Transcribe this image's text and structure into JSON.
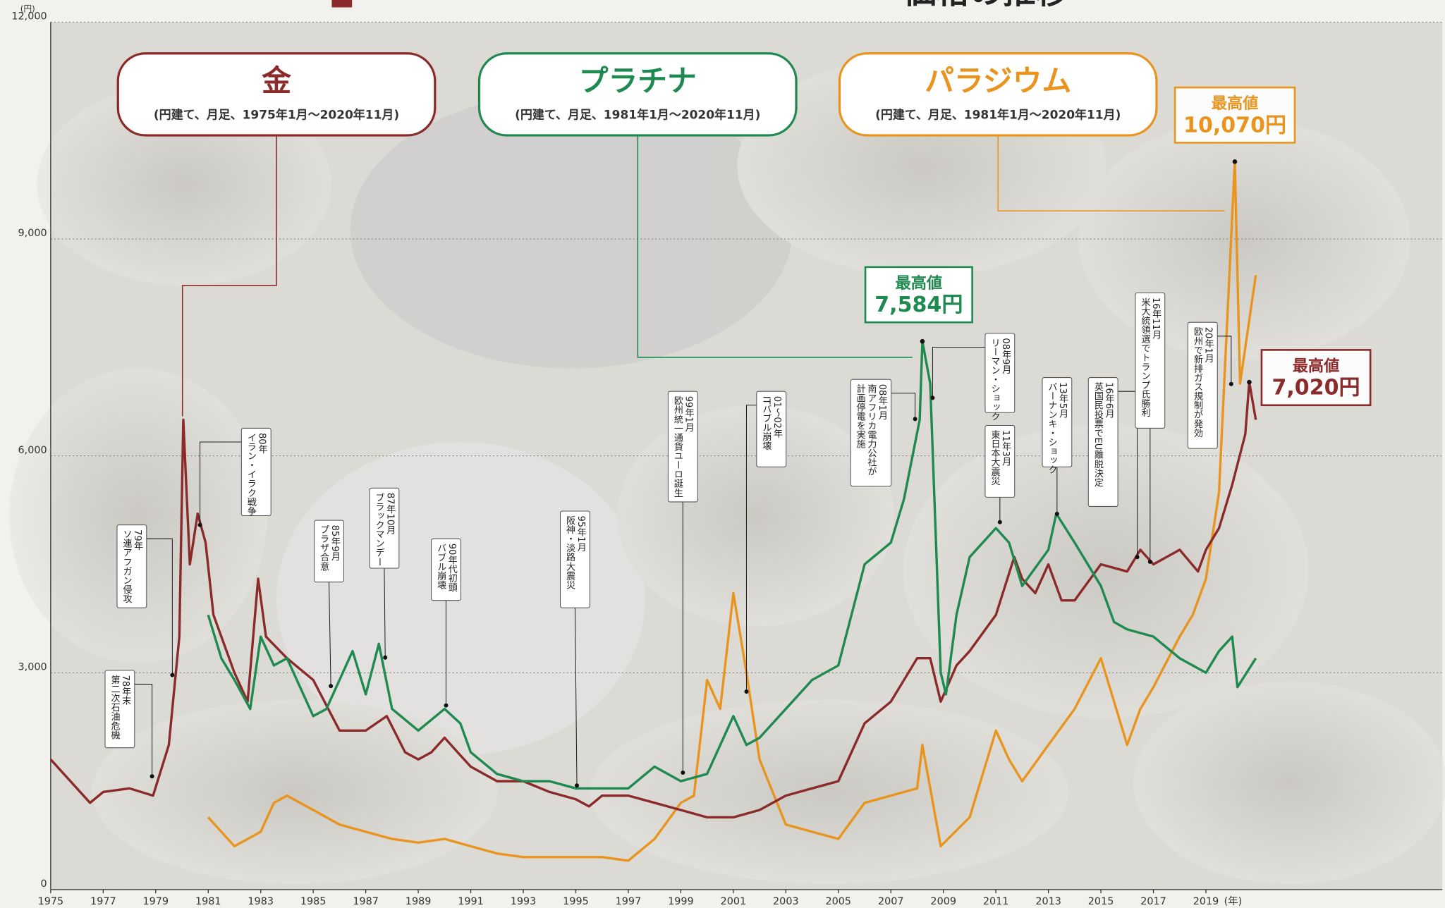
{
  "chart_data": {
    "type": "line",
    "title": "価格の推移",
    "y_unit": "(円)",
    "x_unit": "(年)",
    "xlim": [
      1975,
      2028
    ],
    "ylim": [
      0,
      12000
    ],
    "xticks": [
      1975,
      1977,
      1979,
      1981,
      1983,
      1985,
      1987,
      1989,
      1991,
      1993,
      1995,
      1997,
      1999,
      2001,
      2003,
      2005,
      2007,
      2009,
      2011,
      2013,
      2015,
      2017,
      2019
    ],
    "yticks": [
      0,
      {
        "value": 3000,
        "label": "3,000"
      },
      {
        "value": 6000,
        "label": "6,000"
      },
      {
        "value": 9000,
        "label": "9,000"
      },
      {
        "value": 12000,
        "label": "12,000"
      }
    ],
    "grid": true,
    "series": [
      {
        "name": "金",
        "subtitle": "(円建て、月足、1975年1月～2020年11月)",
        "color": "#8b2a2a",
        "x": [
          1975,
          1976.5,
          1977,
          1978,
          1978.9,
          1979.5,
          1979.9,
          1980.05,
          1980.3,
          1980.6,
          1980.9,
          1981.2,
          1982,
          1982.5,
          1982.9,
          1983.2,
          1984,
          1985,
          1986,
          1987,
          1987.8,
          1988.5,
          1989,
          1989.5,
          1990,
          1990.5,
          1991,
          1992,
          1993,
          1994,
          1995,
          1995.5,
          1996,
          1997,
          1998,
          1999,
          2000,
          2001,
          2002,
          2003,
          2004,
          2005,
          2006,
          2007,
          2008,
          2008.5,
          2008.9,
          2009.5,
          2010,
          2011,
          2011.7,
          2012,
          2012.5,
          2013,
          2013.5,
          2014,
          2015,
          2016,
          2016.5,
          2017,
          2018,
          2018.7,
          2019,
          2019.5,
          2020,
          2020.5,
          2020.65,
          2020.9
        ],
        "values": [
          1800,
          1200,
          1350,
          1400,
          1300,
          2000,
          3500,
          6500,
          4500,
          5200,
          4800,
          3800,
          3000,
          2600,
          4300,
          3500,
          3200,
          2900,
          2200,
          2200,
          2400,
          1900,
          1800,
          1900,
          2100,
          1900,
          1700,
          1500,
          1500,
          1350,
          1250,
          1150,
          1300,
          1300,
          1200,
          1100,
          1000,
          1000,
          1100,
          1300,
          1400,
          1500,
          2300,
          2600,
          3200,
          3200,
          2600,
          3100,
          3300,
          3800,
          4600,
          4300,
          4100,
          4500,
          4000,
          4000,
          4500,
          4400,
          4700,
          4500,
          4700,
          4400,
          4700,
          5000,
          5600,
          6300,
          7020,
          6500
        ],
        "peak": {
          "label": "最高値",
          "x": 2020.65,
          "value": 7020,
          "value_label": "7,020円"
        }
      },
      {
        "name": "プラチナ",
        "subtitle": "(円建て、月足、1981年1月～2020年11月)",
        "color": "#1f8a4f",
        "x": [
          1981,
          1981.5,
          1982,
          1982.6,
          1983,
          1983.5,
          1984,
          1985,
          1985.5,
          1986,
          1986.5,
          1987,
          1987.5,
          1988,
          1989,
          1990,
          1990.6,
          1991,
          1992,
          1993,
          1994,
          1995,
          1996,
          1997,
          1998,
          1999,
          2000,
          2001,
          2001.5,
          2002,
          2003,
          2004,
          2005,
          2006,
          2007,
          2007.5,
          2008.1,
          2008.2,
          2008.5,
          2008.9,
          2009.1,
          2009.5,
          2010,
          2011,
          2011.5,
          2012,
          2013,
          2013.3,
          2014,
          2015,
          2015.5,
          2016,
          2017,
          2018,
          2019,
          2019.5,
          2020,
          2020.2,
          2020.9
        ],
        "values": [
          3800,
          3200,
          2900,
          2500,
          3500,
          3100,
          3200,
          2400,
          2500,
          2900,
          3300,
          2700,
          3400,
          2500,
          2200,
          2500,
          2300,
          1900,
          1600,
          1500,
          1500,
          1400,
          1400,
          1400,
          1700,
          1500,
          1600,
          2400,
          2000,
          2100,
          2500,
          2900,
          3100,
          4500,
          4800,
          5400,
          6500,
          7584,
          7000,
          3000,
          2700,
          3800,
          4600,
          5000,
          4800,
          4200,
          4700,
          5200,
          4800,
          4200,
          3700,
          3600,
          3500,
          3200,
          3000,
          3300,
          3500,
          2800,
          3200
        ],
        "peak": {
          "label": "最高値",
          "x": 2008.2,
          "value": 7584,
          "value_label": "7,584円"
        }
      },
      {
        "name": "パラジウム",
        "subtitle": "(円建て、月足、1981年1月～2020年11月)",
        "color": "#e8941f",
        "x": [
          1981,
          1981.5,
          1982,
          1983,
          1983.5,
          1984,
          1985,
          1986,
          1987,
          1988,
          1989,
          1990,
          1991,
          1992,
          1993,
          1994,
          1995,
          1996,
          1997,
          1998,
          1999,
          1999.5,
          2000,
          2000.5,
          2001,
          2001.5,
          2002,
          2003,
          2004,
          2005,
          2006,
          2007,
          2008,
          2008.2,
          2008.9,
          2010,
          2011,
          2011.5,
          2012,
          2013,
          2014,
          2015,
          2015.5,
          2016,
          2016.5,
          2017,
          2018,
          2018.5,
          2019,
          2019.5,
          2020.1,
          2020.3,
          2020.9
        ],
        "values": [
          1000,
          800,
          600,
          800,
          1200,
          1300,
          1100,
          900,
          800,
          700,
          650,
          700,
          600,
          500,
          450,
          450,
          450,
          450,
          400,
          700,
          1200,
          1300,
          2900,
          2500,
          4100,
          3000,
          1800,
          900,
          800,
          700,
          1200,
          1300,
          1400,
          2000,
          600,
          1000,
          2200,
          1800,
          1500,
          2000,
          2500,
          3200,
          2600,
          2000,
          2500,
          2800,
          3500,
          3800,
          4300,
          5500,
          10070,
          7000,
          8500
        ],
        "peak": {
          "label": "最高値",
          "x": 2020.1,
          "value": 10070,
          "value_label": "10,070円"
        }
      }
    ],
    "annotations": [
      {
        "lines": [
          "78年末",
          "第二次石油危機"
        ]
      },
      {
        "lines": [
          "79年",
          "ソ連アフガン侵攻"
        ]
      },
      {
        "lines": [
          "80年",
          "イラン・イラク戦争"
        ]
      },
      {
        "lines": [
          "85年9月",
          "プラザ合意"
        ]
      },
      {
        "lines": [
          "87年10月",
          "ブラックマンデー"
        ]
      },
      {
        "lines": [
          "90年代初頭",
          "バブル崩壊"
        ]
      },
      {
        "lines": [
          "95年1月",
          "阪神・淡路大震災"
        ]
      },
      {
        "lines": [
          "99年1月",
          "欧州統一通貨ユーロ誕生"
        ]
      },
      {
        "lines": [
          "01～02年",
          "ITバブル崩壊"
        ]
      },
      {
        "lines": [
          "08年1月",
          "南アフリカ電力公社が",
          "計画停電を実施"
        ]
      },
      {
        "lines": [
          "08年9月",
          "リーマン・ショック"
        ]
      },
      {
        "lines": [
          "11年3月",
          "東日本大震災"
        ]
      },
      {
        "lines": [
          "13年5月",
          "バーナンキ・ショック"
        ]
      },
      {
        "lines": [
          "16年6月",
          "英国民投票でEU離脱決定"
        ]
      },
      {
        "lines": [
          "16年11月",
          "米大統領選でトランプ氏勝利"
        ]
      },
      {
        "lines": [
          "20年1月",
          "欧州で新排ガス規制が発効"
        ]
      }
    ]
  }
}
